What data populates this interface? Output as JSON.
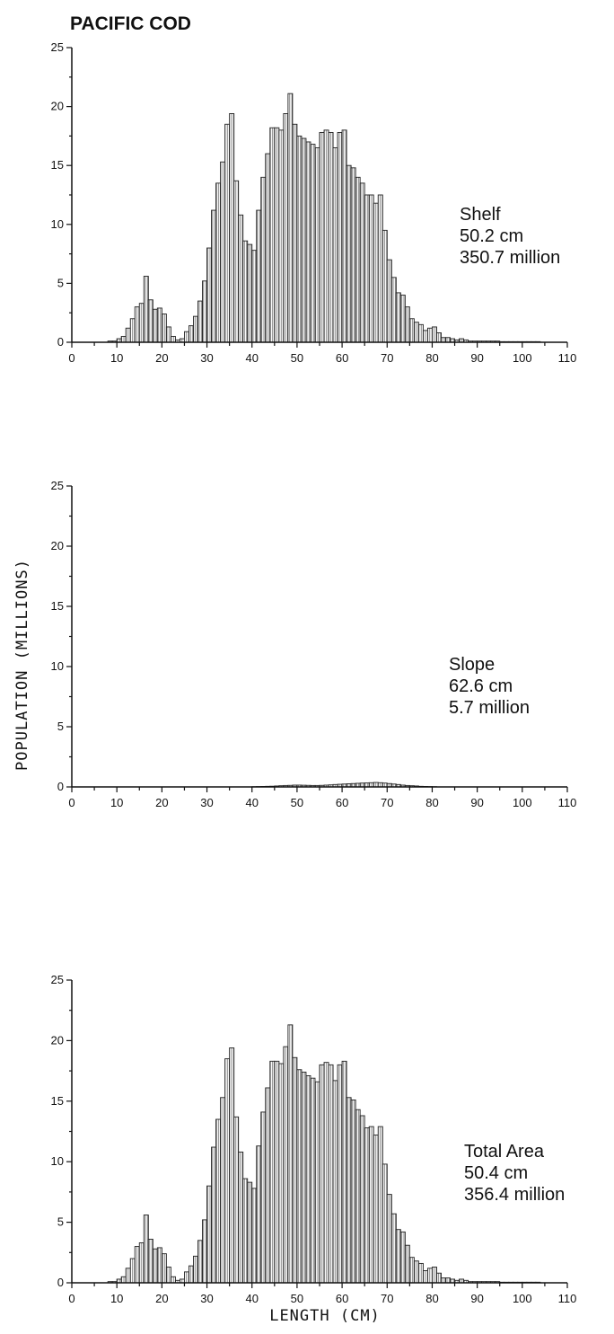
{
  "title": "PACIFIC COD",
  "ylabel": "POPULATION (MILLIONS)",
  "xlabel": "LENGTH (CM)",
  "chart_data": [
    {
      "type": "bar",
      "title": "PACIFIC COD",
      "xlim": [
        0,
        110
      ],
      "ylim": [
        0,
        25
      ],
      "xticks": [
        0,
        10,
        20,
        30,
        40,
        50,
        60,
        70,
        80,
        90,
        100,
        110
      ],
      "yticks": [
        0,
        5,
        10,
        15,
        20,
        25
      ],
      "annotation": [
        "Shelf",
        "50.2 cm",
        "350.7 million"
      ],
      "bin_width": 1,
      "x": [
        8,
        9,
        10,
        11,
        12,
        13,
        14,
        15,
        16,
        17,
        18,
        19,
        20,
        21,
        22,
        23,
        24,
        25,
        26,
        27,
        28,
        29,
        30,
        31,
        32,
        33,
        34,
        35,
        36,
        37,
        38,
        39,
        40,
        41,
        42,
        43,
        44,
        45,
        46,
        47,
        48,
        49,
        50,
        51,
        52,
        53,
        54,
        55,
        56,
        57,
        58,
        59,
        60,
        61,
        62,
        63,
        64,
        65,
        66,
        67,
        68,
        69,
        70,
        71,
        72,
        73,
        74,
        75,
        76,
        77,
        78,
        79,
        80,
        81,
        82,
        83,
        84,
        85,
        86,
        87,
        88,
        89,
        90,
        91,
        92,
        93,
        94,
        95,
        96,
        97,
        98,
        99,
        100,
        101,
        102,
        103
      ],
      "values": [
        0.1,
        0.1,
        0.3,
        0.5,
        1.2,
        2.0,
        3.0,
        3.3,
        5.6,
        3.6,
        2.8,
        2.9,
        2.4,
        1.3,
        0.5,
        0.2,
        0.3,
        0.9,
        1.4,
        2.2,
        3.5,
        5.2,
        8.0,
        11.2,
        13.5,
        15.3,
        18.5,
        19.4,
        13.7,
        10.8,
        8.6,
        8.3,
        7.8,
        11.2,
        14.0,
        16.0,
        18.2,
        18.2,
        18.0,
        19.4,
        21.1,
        18.5,
        17.5,
        17.3,
        17.0,
        16.8,
        16.5,
        17.8,
        18.0,
        17.8,
        16.5,
        17.8,
        18.0,
        15.0,
        14.8,
        14.0,
        13.5,
        12.5,
        12.5,
        11.8,
        12.5,
        9.5,
        7.0,
        5.5,
        4.2,
        4.0,
        3.0,
        2.0,
        1.7,
        1.5,
        1.0,
        1.2,
        1.3,
        0.8,
        0.4,
        0.4,
        0.3,
        0.2,
        0.3,
        0.2,
        0.1,
        0.1,
        0.1,
        0.1,
        0.1,
        0.1,
        0.1,
        0.05,
        0.05,
        0.05,
        0.05,
        0.05,
        0.05,
        0.05,
        0.05,
        0.05
      ]
    },
    {
      "type": "bar",
      "xlim": [
        0,
        110
      ],
      "ylim": [
        0,
        25
      ],
      "xticks": [
        0,
        10,
        20,
        30,
        40,
        50,
        60,
        70,
        80,
        90,
        100,
        110
      ],
      "yticks": [
        0,
        5,
        10,
        15,
        20,
        25
      ],
      "annotation": [
        "Slope",
        "62.6 cm",
        "5.7 million"
      ],
      "bin_width": 1,
      "x": [
        40,
        41,
        42,
        43,
        44,
        45,
        46,
        47,
        48,
        49,
        50,
        51,
        52,
        53,
        54,
        55,
        56,
        57,
        58,
        59,
        60,
        61,
        62,
        63,
        64,
        65,
        66,
        67,
        68,
        69,
        70,
        71,
        72,
        73,
        74,
        75,
        76,
        77,
        78,
        79,
        80
      ],
      "values": [
        0.02,
        0.03,
        0.04,
        0.05,
        0.06,
        0.08,
        0.1,
        0.12,
        0.13,
        0.15,
        0.15,
        0.14,
        0.13,
        0.12,
        0.12,
        0.13,
        0.15,
        0.17,
        0.2,
        0.22,
        0.24,
        0.26,
        0.28,
        0.3,
        0.32,
        0.33,
        0.35,
        0.37,
        0.35,
        0.32,
        0.28,
        0.24,
        0.2,
        0.15,
        0.12,
        0.1,
        0.08,
        0.05,
        0.04,
        0.03,
        0.02
      ]
    },
    {
      "type": "bar",
      "xlim": [
        0,
        110
      ],
      "ylim": [
        0,
        25
      ],
      "xticks": [
        0,
        10,
        20,
        30,
        40,
        50,
        60,
        70,
        80,
        90,
        100,
        110
      ],
      "yticks": [
        0,
        5,
        10,
        15,
        20,
        25
      ],
      "annotation": [
        "Total Area",
        "50.4 cm",
        "356.4 million"
      ],
      "bin_width": 1,
      "x": [
        8,
        9,
        10,
        11,
        12,
        13,
        14,
        15,
        16,
        17,
        18,
        19,
        20,
        21,
        22,
        23,
        24,
        25,
        26,
        27,
        28,
        29,
        30,
        31,
        32,
        33,
        34,
        35,
        36,
        37,
        38,
        39,
        40,
        41,
        42,
        43,
        44,
        45,
        46,
        47,
        48,
        49,
        50,
        51,
        52,
        53,
        54,
        55,
        56,
        57,
        58,
        59,
        60,
        61,
        62,
        63,
        64,
        65,
        66,
        67,
        68,
        69,
        70,
        71,
        72,
        73,
        74,
        75,
        76,
        77,
        78,
        79,
        80,
        81,
        82,
        83,
        84,
        85,
        86,
        87,
        88,
        89,
        90,
        91,
        92,
        93,
        94,
        95,
        96,
        97,
        98,
        99,
        100,
        101,
        102,
        103
      ],
      "values": [
        0.1,
        0.1,
        0.3,
        0.5,
        1.2,
        2.0,
        3.0,
        3.3,
        5.6,
        3.6,
        2.8,
        2.9,
        2.4,
        1.3,
        0.5,
        0.2,
        0.3,
        0.9,
        1.4,
        2.2,
        3.5,
        5.2,
        8.0,
        11.2,
        13.5,
        15.3,
        18.5,
        19.4,
        13.7,
        10.8,
        8.6,
        8.3,
        7.8,
        11.3,
        14.1,
        16.1,
        18.3,
        18.3,
        18.1,
        19.5,
        21.3,
        18.6,
        17.6,
        17.4,
        17.1,
        16.9,
        16.6,
        18.0,
        18.2,
        18.0,
        16.7,
        18.0,
        18.3,
        15.3,
        15.1,
        14.3,
        13.8,
        12.8,
        12.9,
        12.2,
        12.9,
        9.8,
        7.3,
        5.7,
        4.4,
        4.2,
        3.1,
        2.1,
        1.8,
        1.6,
        1.0,
        1.2,
        1.3,
        0.8,
        0.4,
        0.4,
        0.3,
        0.2,
        0.3,
        0.2,
        0.1,
        0.1,
        0.1,
        0.1,
        0.1,
        0.1,
        0.1,
        0.05,
        0.05,
        0.05,
        0.05,
        0.05,
        0.05,
        0.05,
        0.05,
        0.05
      ]
    }
  ]
}
